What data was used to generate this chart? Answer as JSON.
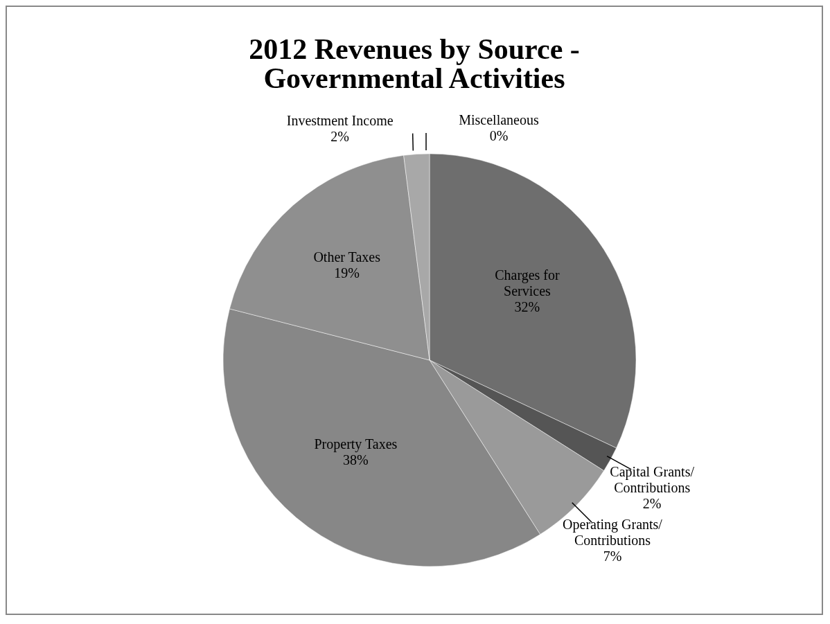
{
  "chart_data": {
    "type": "pie",
    "title": "2012 Revenues by Source - Governmental Activities",
    "categories": [
      "Charges for Services",
      "Capital Grants/ Contributions",
      "Operating Grants/ Contributions",
      "Property Taxes",
      "Other Taxes",
      "Investment Income",
      "Miscellaneous"
    ],
    "values": [
      32,
      2,
      7,
      38,
      19,
      2,
      0
    ],
    "value_labels": [
      "32%",
      "2%",
      "7%",
      "38%",
      "19%",
      "2%",
      "0%"
    ],
    "colors": [
      "#6e6e6e",
      "#555555",
      "#9a9a9a",
      "#878787",
      "#8f8f8f",
      "#a8a8a8",
      "#c4c4c4"
    ]
  }
}
